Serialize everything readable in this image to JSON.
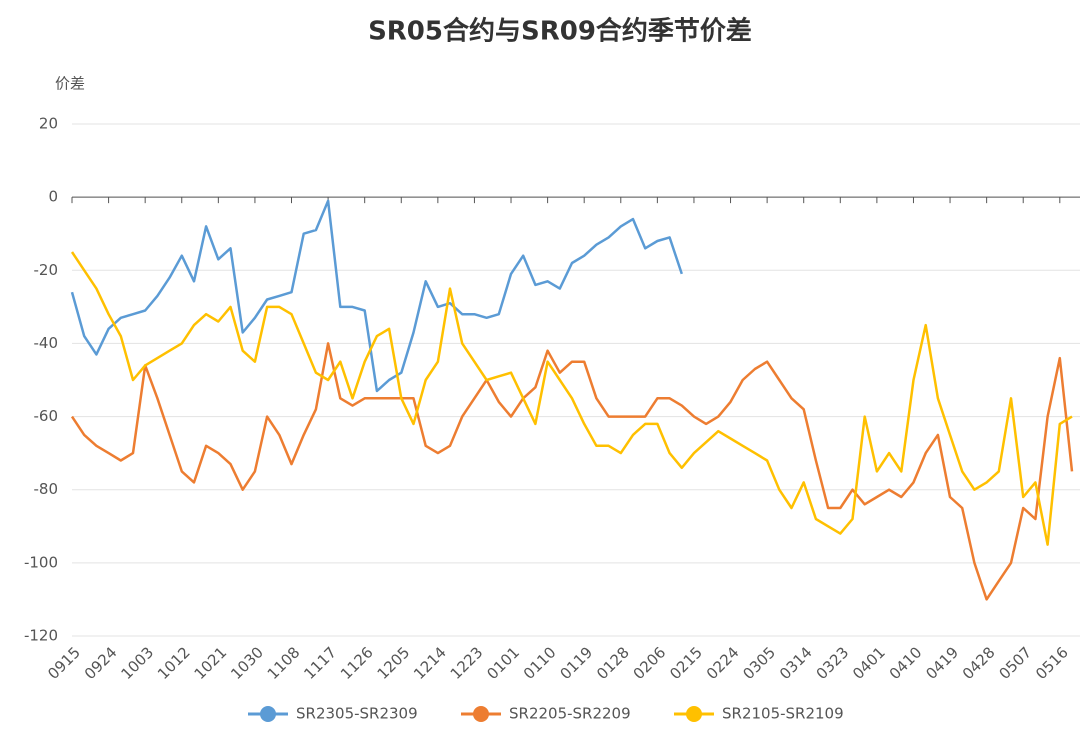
{
  "chart_data": {
    "type": "line",
    "title": "SR05合约与SR09合约季节价差",
    "y_label": "价差",
    "categories": [
      "0915",
      null,
      null,
      "0924",
      null,
      null,
      "1003",
      null,
      null,
      "1012",
      null,
      null,
      "1021",
      null,
      null,
      "1030",
      null,
      null,
      "1108",
      null,
      null,
      "1117",
      null,
      null,
      "1126",
      null,
      null,
      "1205",
      null,
      null,
      "1214",
      null,
      null,
      "1223",
      null,
      null,
      "0101",
      null,
      null,
      "0110",
      null,
      null,
      "0119",
      null,
      null,
      "0128",
      null,
      null,
      "0206",
      null,
      null,
      "0215",
      null,
      null,
      "0224",
      null,
      null,
      "0305",
      null,
      null,
      "0314",
      null,
      null,
      "0323",
      null,
      null,
      "0401",
      null,
      null,
      "0410",
      null,
      null,
      "0419",
      null,
      null,
      "0428",
      null,
      null,
      "0507",
      null,
      null,
      "0516",
      null
    ],
    "series": [
      {
        "name": "SR2305-SR2309",
        "color": "#5b9bd5",
        "values": [
          -26,
          -38,
          -43,
          -36,
          -33,
          -32,
          -31,
          -27,
          -22,
          -16,
          -23,
          -8,
          -17,
          -14,
          -37,
          -33,
          -28,
          -27,
          -26,
          -10,
          -9,
          -1,
          -30,
          -30,
          -31,
          -53,
          -50,
          -48,
          -37,
          -23,
          -30,
          -29,
          -32,
          -32,
          -33,
          -32,
          -21,
          -16,
          -24,
          -23,
          -25,
          -18,
          -16,
          -13,
          -11,
          -8,
          -6,
          -14,
          -12,
          -11,
          -21,
          null,
          null,
          null,
          null,
          null,
          null,
          null,
          null,
          null,
          null,
          null,
          null,
          null,
          null,
          null,
          null,
          null,
          null,
          null,
          null,
          null,
          null,
          null,
          null,
          null,
          null,
          null,
          null,
          null,
          null,
          null,
          null
        ]
      },
      {
        "name": "SR2205-SR2209",
        "color": "#ed7d31",
        "values": [
          -60,
          -65,
          -68,
          -70,
          -72,
          -70,
          -46,
          -55,
          -65,
          -75,
          -78,
          -68,
          -70,
          -73,
          -80,
          -75,
          -60,
          -65,
          -73,
          -65,
          -58,
          -40,
          -55,
          -57,
          -55,
          -55,
          -55,
          -55,
          -55,
          -68,
          -70,
          -68,
          -60,
          -55,
          -50,
          -56,
          -60,
          -55,
          -52,
          -42,
          -48,
          -45,
          -45,
          -55,
          -60,
          -60,
          -60,
          -60,
          -55,
          -55,
          -57,
          -60,
          -62,
          -60,
          -56,
          -50,
          -47,
          -45,
          -50,
          -55,
          -58,
          -72,
          -85,
          -85,
          -80,
          -84,
          -82,
          -80,
          -82,
          -78,
          -70,
          -65,
          -82,
          -85,
          -100,
          -110,
          -105,
          -100,
          -85,
          -88,
          -60,
          -44,
          -75
        ]
      },
      {
        "name": "SR2105-SR2109",
        "color": "#ffc000",
        "values": [
          -15,
          -20,
          -25,
          -32,
          -38,
          -50,
          -46,
          -44,
          -42,
          -40,
          -35,
          -32,
          -34,
          -30,
          -42,
          -45,
          -30,
          -30,
          -32,
          -40,
          -48,
          -50,
          -45,
          -55,
          -45,
          -38,
          -36,
          -55,
          -62,
          -50,
          -45,
          -25,
          -40,
          -45,
          -50,
          -49,
          -48,
          -55,
          -62,
          -45,
          -50,
          -55,
          -62,
          -68,
          -68,
          -70,
          -65,
          -62,
          -62,
          -70,
          -74,
          -70,
          -67,
          -64,
          -66,
          -68,
          -70,
          -72,
          -80,
          -85,
          -78,
          -88,
          -90,
          -92,
          -88,
          -60,
          -75,
          -70,
          -75,
          -50,
          -35,
          -55,
          -65,
          -75,
          -80,
          -78,
          -75,
          -55,
          -82,
          -78,
          -95,
          -62,
          -60
        ]
      }
    ],
    "ylim": [
      -120,
      20
    ],
    "yticks": [
      -120,
      -100,
      -80,
      -60,
      -40,
      -20,
      0,
      20
    ],
    "grid": true,
    "legend": "bottom"
  }
}
